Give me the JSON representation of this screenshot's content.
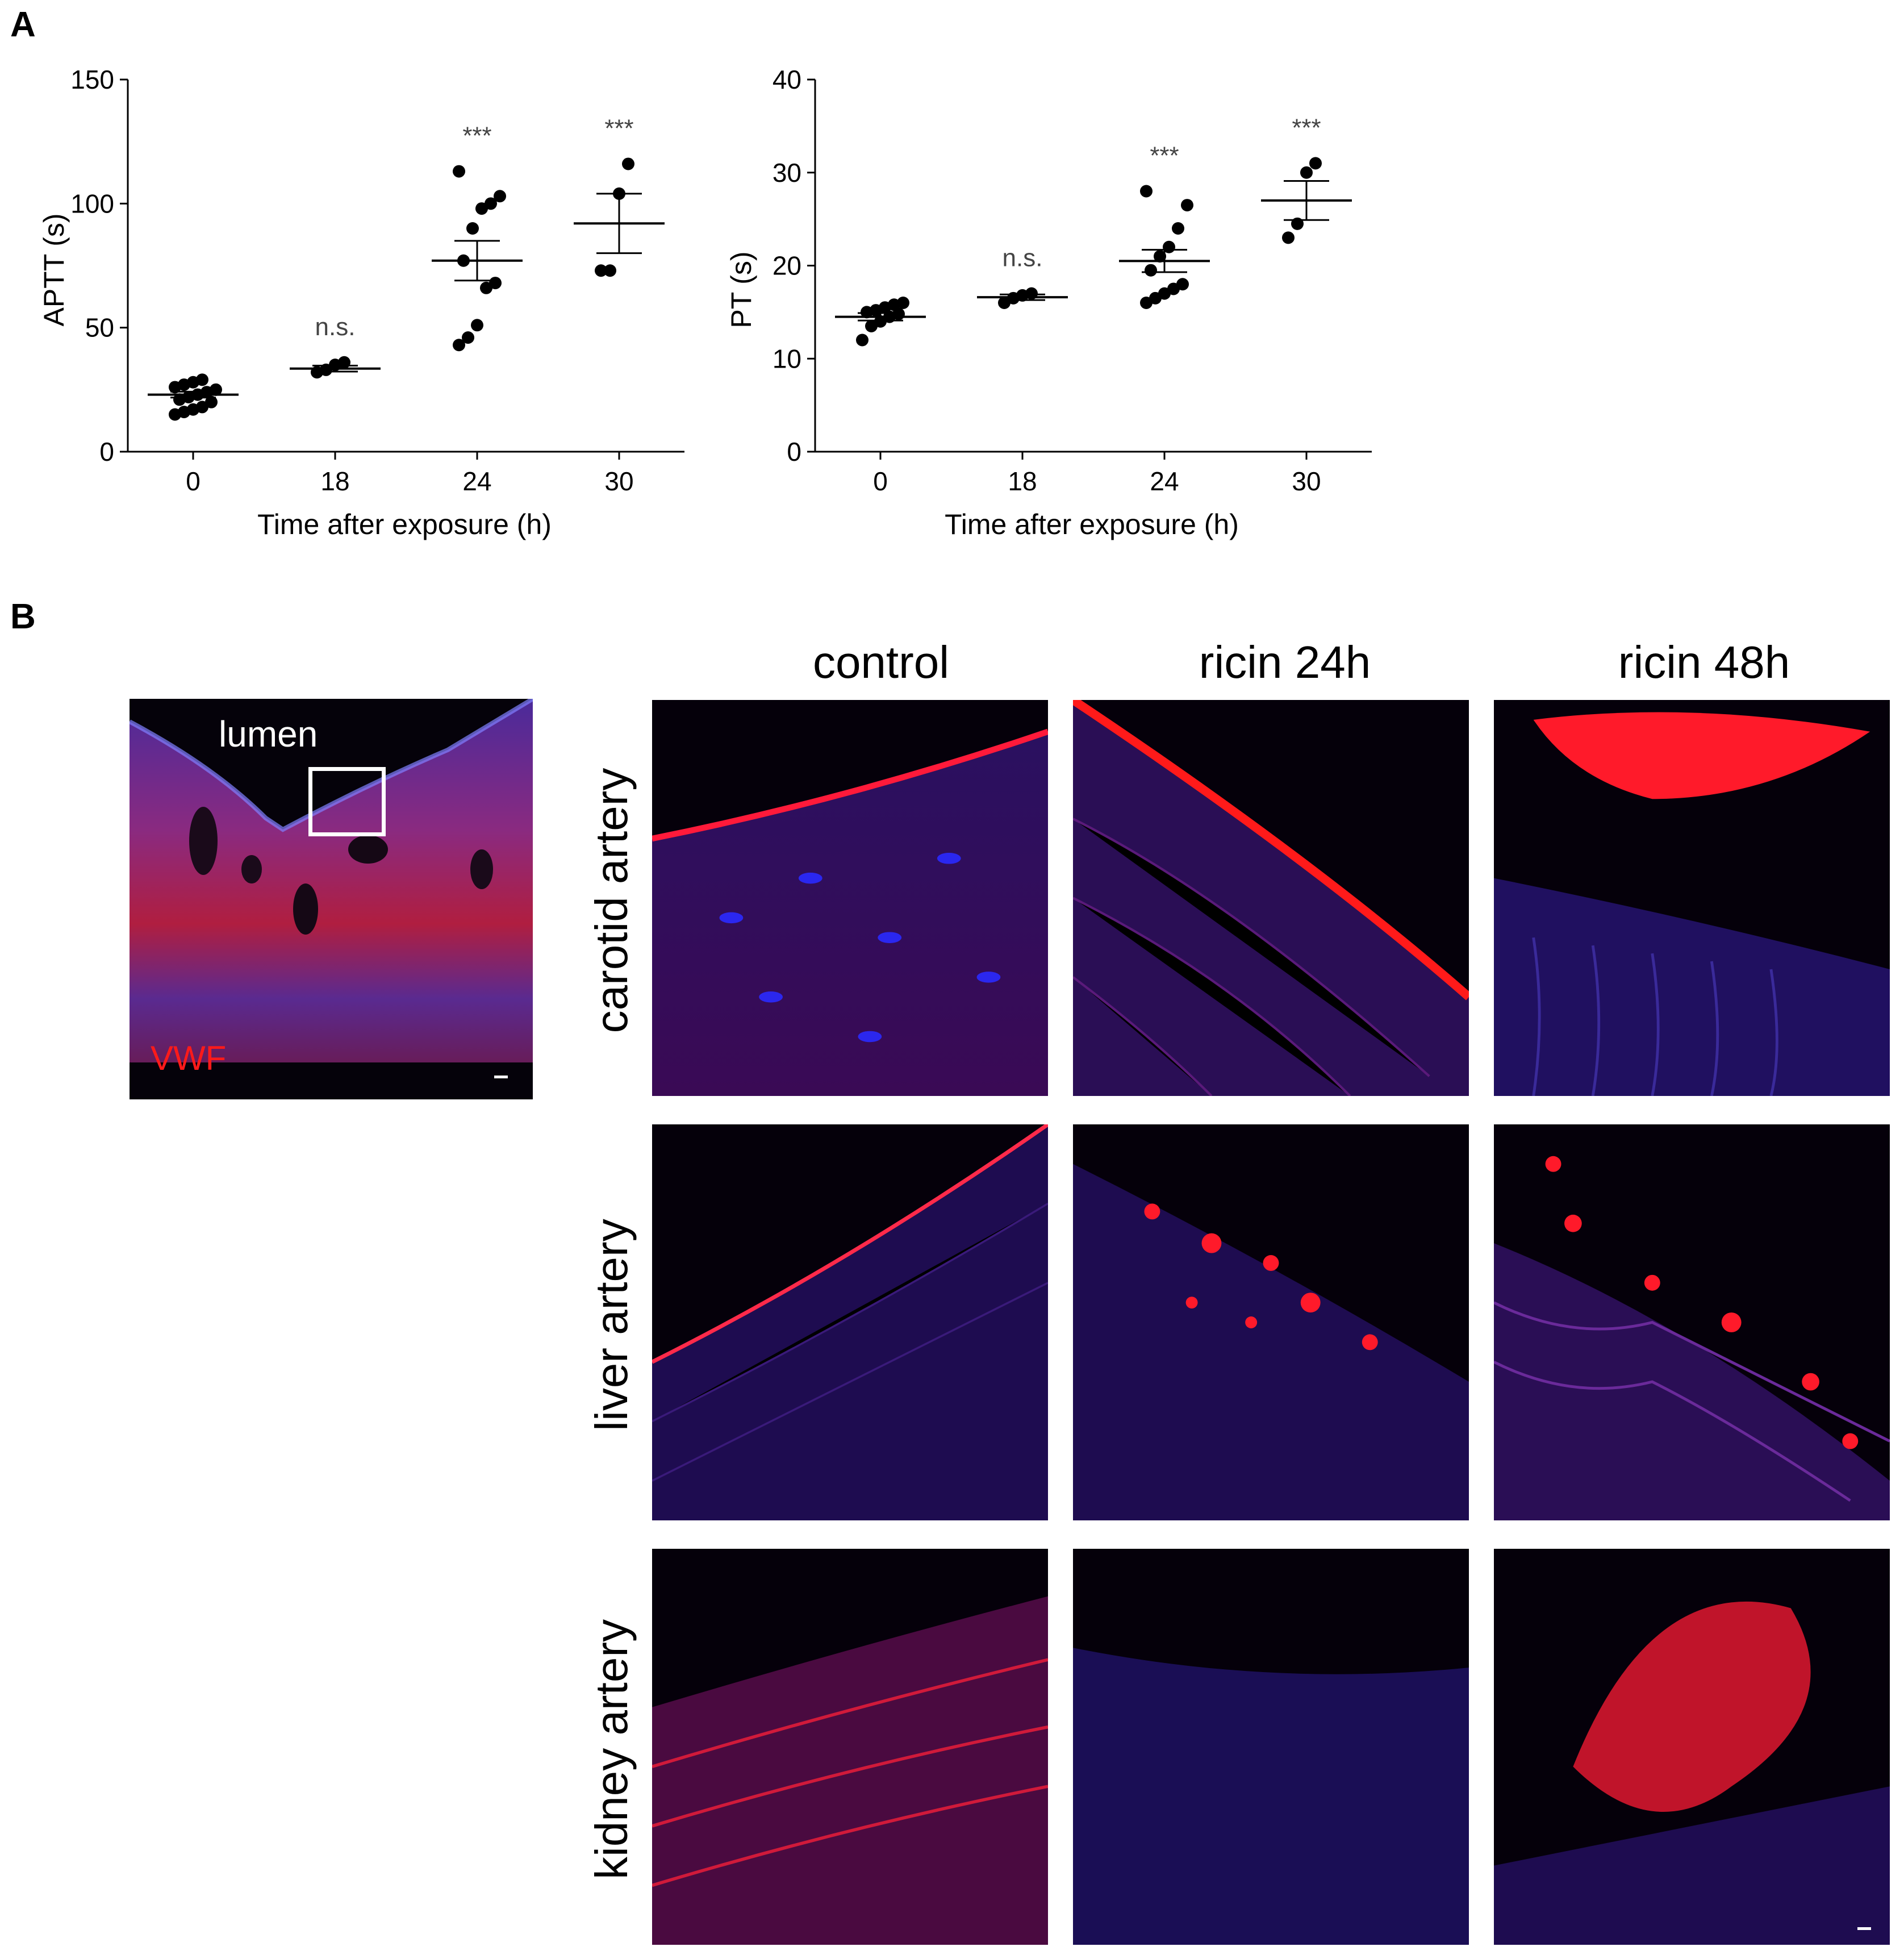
{
  "panel_a": {
    "letter": "A"
  },
  "panel_b": {
    "letter": "B"
  },
  "chart_data": [
    {
      "type": "scatter",
      "title": "",
      "xlabel": "Time after exposure (h)",
      "ylabel": "APTT (s)",
      "categories": [
        "0",
        "18",
        "24",
        "30"
      ],
      "ylim": [
        0,
        150
      ],
      "yticks": [
        "0",
        "50",
        "100",
        "150"
      ],
      "grid": false,
      "groups": [
        {
          "category": "0",
          "points": [
            15,
            16,
            17,
            18,
            20,
            21,
            22,
            23,
            24,
            25,
            26,
            27,
            28,
            29
          ],
          "mean": 23,
          "sem": 1.2,
          "significance": ""
        },
        {
          "category": "18",
          "points": [
            32,
            33,
            35,
            36
          ],
          "mean": 33.5,
          "sem": 1.2,
          "significance": "n.s."
        },
        {
          "category": "24",
          "points": [
            43,
            46,
            51,
            66,
            68,
            77,
            90,
            98,
            100,
            103,
            113
          ],
          "mean": 77,
          "sem": 8,
          "significance": "***"
        },
        {
          "category": "30",
          "points": [
            73,
            73,
            104,
            116
          ],
          "mean": 92,
          "sem": 12,
          "significance": "***"
        }
      ]
    },
    {
      "type": "scatter",
      "title": "",
      "xlabel": "Time after exposure (h)",
      "ylabel": "PT (s)",
      "categories": [
        "0",
        "18",
        "24",
        "30"
      ],
      "ylim": [
        0,
        40
      ],
      "yticks": [
        "0",
        "10",
        "20",
        "30",
        "40"
      ],
      "grid": false,
      "groups": [
        {
          "category": "0",
          "points": [
            12,
            13.5,
            14,
            14.5,
            14.8,
            15,
            15.2,
            15.5,
            15.8,
            16
          ],
          "mean": 14.5,
          "sem": 0.4,
          "significance": ""
        },
        {
          "category": "18",
          "points": [
            16,
            16.5,
            16.8,
            17
          ],
          "mean": 16.6,
          "sem": 0.3,
          "significance": "n.s."
        },
        {
          "category": "24",
          "points": [
            16,
            16.5,
            17,
            17.5,
            18,
            19.5,
            21,
            22,
            24,
            26.5,
            28
          ],
          "mean": 20.5,
          "sem": 1.2,
          "significance": "***"
        },
        {
          "category": "30",
          "points": [
            23,
            24.5,
            30,
            31
          ],
          "mean": 27,
          "sem": 2.1,
          "significance": "***"
        }
      ]
    }
  ],
  "panel_b_content": {
    "overview": {
      "lumen_label": "lumen",
      "stain_label": "VWF"
    },
    "column_headers": [
      "control",
      "ricin 24h",
      "ricin 48h"
    ],
    "row_headers": [
      "carotid artery",
      "liver artery",
      "kidney artery"
    ],
    "colors": {
      "stain": "#ff1a1a",
      "nuclei": "#2a2aff",
      "background": "#05000a"
    }
  }
}
